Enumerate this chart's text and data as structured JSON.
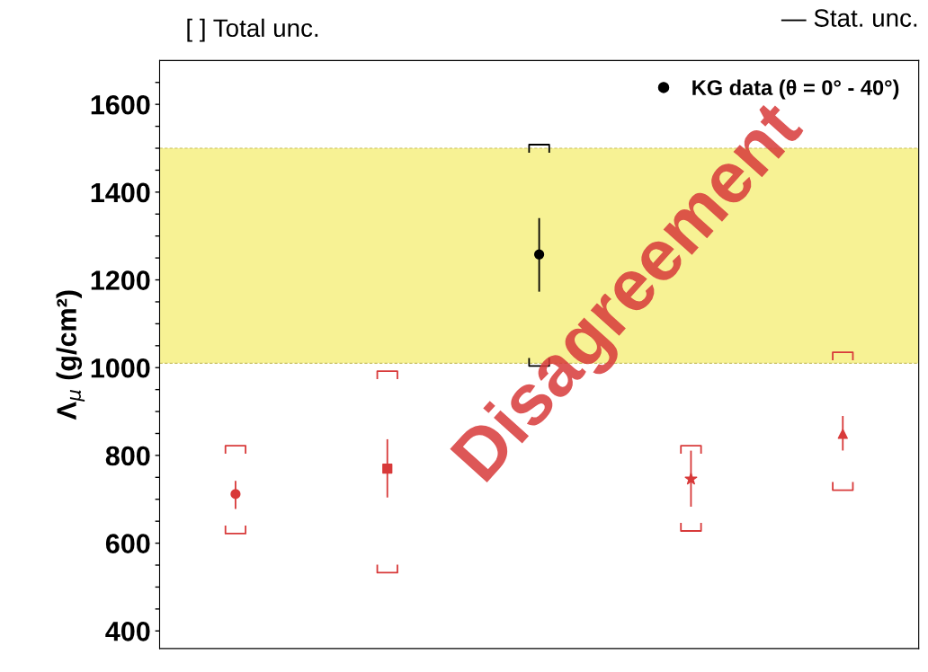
{
  "chart_data": {
    "type": "scatter",
    "ylabel": "Λ$_{μ}$ (g/cm²)",
    "categories": [
      null,
      null,
      null,
      null,
      null
    ],
    "series": [
      {
        "name": "KG data (θ = 0° - 40°)",
        "color": "#000000",
        "marker": "circle",
        "values": [
          null,
          null,
          1258,
          null,
          null
        ],
        "errors": [
          null,
          null,
          [
            1175,
            1339
          ],
          null,
          null
        ]
      },
      {
        "color": "#d83a3a",
        "marker": "circle",
        "values": [
          712,
          null,
          null,
          null,
          null
        ],
        "errors": [
          [
            680,
            740
          ],
          null,
          null,
          null,
          null
        ]
      },
      {
        "color": "#d83a3a",
        "marker": "square",
        "values": [
          null,
          770,
          null,
          null,
          null
        ],
        "errors": [
          null,
          [
            706,
            835
          ],
          null,
          null,
          null
        ]
      },
      {
        "color": "#d83a3a",
        "marker": "star",
        "values": [
          null,
          null,
          null,
          746,
          null
        ],
        "errors": [
          null,
          null,
          null,
          [
            685,
            809
          ],
          null
        ]
      },
      {
        "color": "#d83a3a",
        "marker": "triangle",
        "values": [
          null,
          null,
          null,
          null,
          849
        ],
        "errors": [
          null,
          null,
          null,
          null,
          [
            813,
            888
          ]
        ]
      },
      {
        "colors": [
          "#d83a3a",
          "#d83a3a",
          "#000000",
          "#d83a3a",
          "#d83a3a"
        ],
        "values": [
          631,
          542,
          1013,
          637,
          730
        ]
      },
      {
        "colors": [
          "#d83a3a",
          "#d83a3a",
          "#000000",
          "#d83a3a",
          "#d83a3a"
        ],
        "values": [
          813,
          983,
          1499,
          813,
          1026
        ]
      }
    ],
    "bands": [
      {
        "axis": "y",
        "from": 1010,
        "to": 1500,
        "color": "#f7f294"
      }
    ],
    "ref_lines": [
      {
        "axis": "y",
        "value": 1010,
        "color": "#c8c060",
        "line_style": "dashed"
      },
      {
        "axis": "y",
        "value": 1500,
        "color": "#c8c060",
        "line_style": "dashed"
      }
    ],
    "annotations": [
      "[ ] Total unc.",
      "— Stat. unc.",
      "Disagreement"
    ],
    "ylim": [
      360,
      1700
    ],
    "yticks": [
      400,
      {
        "value": 450,
        "label": null
      },
      {
        "value": 500,
        "label": null
      },
      {
        "value": 550,
        "label": null
      },
      600,
      {
        "value": 650,
        "label": null
      },
      {
        "value": 700,
        "label": null
      },
      {
        "value": 750,
        "label": null
      },
      800,
      {
        "value": 850,
        "label": null
      },
      {
        "value": 900,
        "label": null
      },
      {
        "value": 950,
        "label": null
      },
      1000,
      {
        "value": 1050,
        "label": null
      },
      {
        "value": 1100,
        "label": null
      },
      {
        "value": 1150,
        "label": null
      },
      1200,
      {
        "value": 1250,
        "label": null
      },
      {
        "value": 1300,
        "label": null
      },
      {
        "value": 1350,
        "label": null
      },
      1400,
      {
        "value": 1450,
        "label": null
      },
      {
        "value": 1500,
        "label": null
      },
      {
        "value": 1550,
        "label": null
      },
      1600,
      {
        "value": 1650,
        "label": null
      }
    ],
    "grid": false,
    "legend": "top right"
  }
}
